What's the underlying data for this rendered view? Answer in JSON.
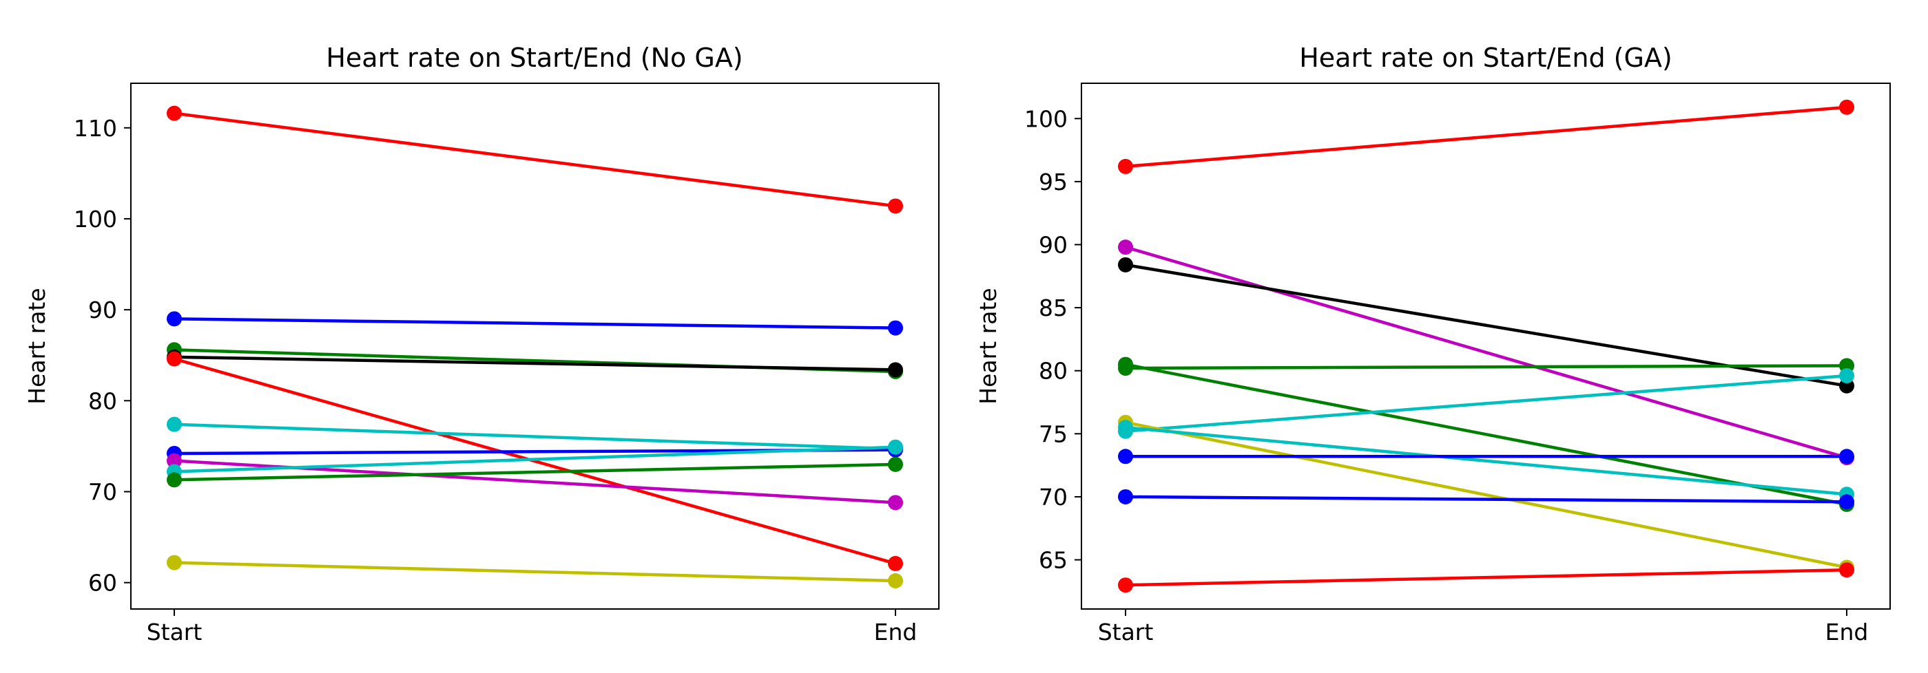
{
  "chart_data": [
    {
      "type": "line",
      "title": "Heart rate on Start/End (No GA)",
      "xlabel": "",
      "ylabel": "Heart rate",
      "categories": [
        "Start",
        "End"
      ],
      "ylim": [
        57.1,
        114.9
      ],
      "yticks": [
        60,
        70,
        80,
        90,
        100,
        110
      ],
      "grid": false,
      "legend": "none",
      "series": [
        {
          "color": "#ff0000",
          "values": [
            111.6,
            101.4
          ]
        },
        {
          "color": "#0000ff",
          "values": [
            89.0,
            88.0
          ]
        },
        {
          "color": "#008000",
          "values": [
            85.6,
            83.2
          ]
        },
        {
          "color": "#000000",
          "values": [
            84.8,
            83.4
          ]
        },
        {
          "color": "#ff0000",
          "values": [
            84.6,
            62.1
          ]
        },
        {
          "color": "#00bfbf",
          "values": [
            77.4,
            74.7
          ]
        },
        {
          "color": "#0000ff",
          "values": [
            74.2,
            74.6
          ]
        },
        {
          "color": "#bf00bf",
          "values": [
            73.4,
            68.8
          ]
        },
        {
          "color": "#00bfbf",
          "values": [
            72.2,
            74.9
          ]
        },
        {
          "color": "#008000",
          "values": [
            71.3,
            73.0
          ]
        },
        {
          "color": "#bfbf00",
          "values": [
            62.2,
            60.2
          ]
        }
      ]
    },
    {
      "type": "line",
      "title": "Heart rate on Start/End (GA)",
      "xlabel": "",
      "ylabel": "Heart rate",
      "categories": [
        "Start",
        "End"
      ],
      "ylim": [
        61.1,
        102.8
      ],
      "yticks": [
        65,
        70,
        75,
        80,
        85,
        90,
        95,
        100
      ],
      "grid": false,
      "legend": "none",
      "series": [
        {
          "color": "#ff0000",
          "values": [
            96.2,
            100.9
          ]
        },
        {
          "color": "#bf00bf",
          "values": [
            89.8,
            73.1
          ]
        },
        {
          "color": "#000000",
          "values": [
            88.4,
            78.8
          ]
        },
        {
          "color": "#008000",
          "values": [
            80.2,
            80.4
          ]
        },
        {
          "color": "#008000",
          "values": [
            80.5,
            69.4
          ]
        },
        {
          "color": "#00bfbf",
          "values": [
            75.2,
            79.6
          ]
        },
        {
          "color": "#bfbf00",
          "values": [
            75.9,
            64.4
          ]
        },
        {
          "color": "#00bfbf",
          "values": [
            75.5,
            70.2
          ]
        },
        {
          "color": "#0000ff",
          "values": [
            73.2,
            73.2
          ]
        },
        {
          "color": "#0000ff",
          "values": [
            70.0,
            69.6
          ]
        },
        {
          "color": "#ff0000",
          "values": [
            63.0,
            64.2
          ]
        }
      ]
    }
  ]
}
